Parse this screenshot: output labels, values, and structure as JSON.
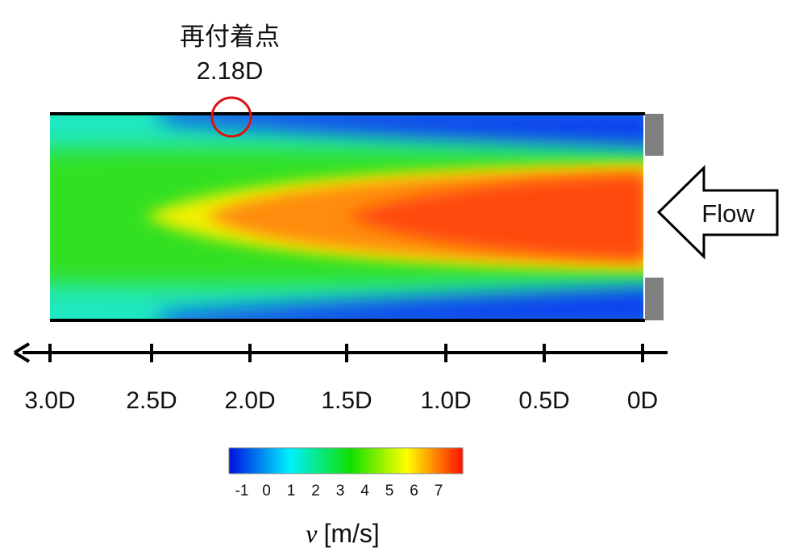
{
  "annotation": {
    "title": "再付着点",
    "value": "2.18D",
    "marker_color": "#e01010"
  },
  "flow_label": "Flow",
  "axis": {
    "ticks": [
      "3.0D",
      "2.5D",
      "2.0D",
      "1.5D",
      "1.0D",
      "0.5D",
      "0D"
    ]
  },
  "colorbar": {
    "ticks": [
      "-1",
      "0",
      "1",
      "2",
      "3",
      "4",
      "5",
      "6",
      "7"
    ],
    "colormap": "jet",
    "colors": [
      "#0010e0",
      "#00f0ff",
      "#00e000",
      "#ffff00",
      "#ff2000"
    ],
    "label_symbol": "v",
    "label_unit": "[m/s]"
  }
}
